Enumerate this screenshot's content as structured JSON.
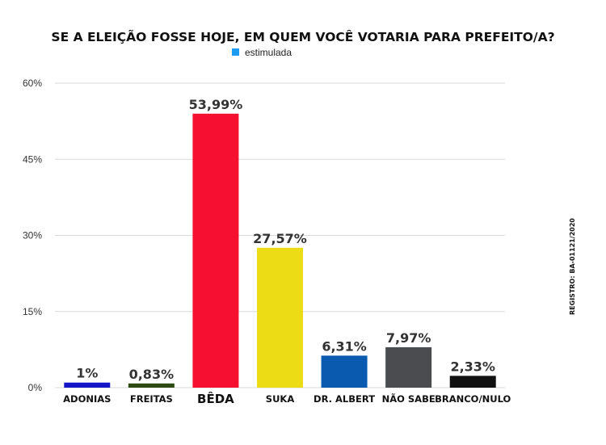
{
  "registro": "REGISTRO: BA-01121/2020",
  "chart_data": {
    "type": "bar",
    "title": "SE A ELEIÇÃO FOSSE HOJE, EM QUEM VOCÊ VOTARIA PARA PREFEITO/A?",
    "xlabel": "",
    "ylabel": "",
    "categories": [
      "ADONIAS",
      "FREITAS",
      "BÊDA",
      "SUKA",
      "DR. ALBERT",
      "NÃO SABE",
      "BRANCO/NULO"
    ],
    "series": [
      {
        "name": "estimulada",
        "values": [
          1,
          0.83,
          53.99,
          27.57,
          6.31,
          7.97,
          2.33
        ],
        "labels": [
          "1%",
          "0,83%",
          "53,99%",
          "27,57%",
          "6,31%",
          "7,97%",
          "2,33%"
        ],
        "colors": [
          "#1515c8",
          "#2c4a12",
          "#f5102f",
          "#ebdc16",
          "#0a5bb0",
          "#4a4c4f",
          "#111111"
        ]
      }
    ],
    "legend_color": "#1e9bf0",
    "legend_position": "top-center",
    "ylim": [
      0,
      60
    ],
    "yticks": [
      0,
      15,
      30,
      45,
      60
    ],
    "ytick_labels": [
      "0%",
      "15%",
      "30%",
      "45%",
      "60%"
    ],
    "grid": true
  }
}
